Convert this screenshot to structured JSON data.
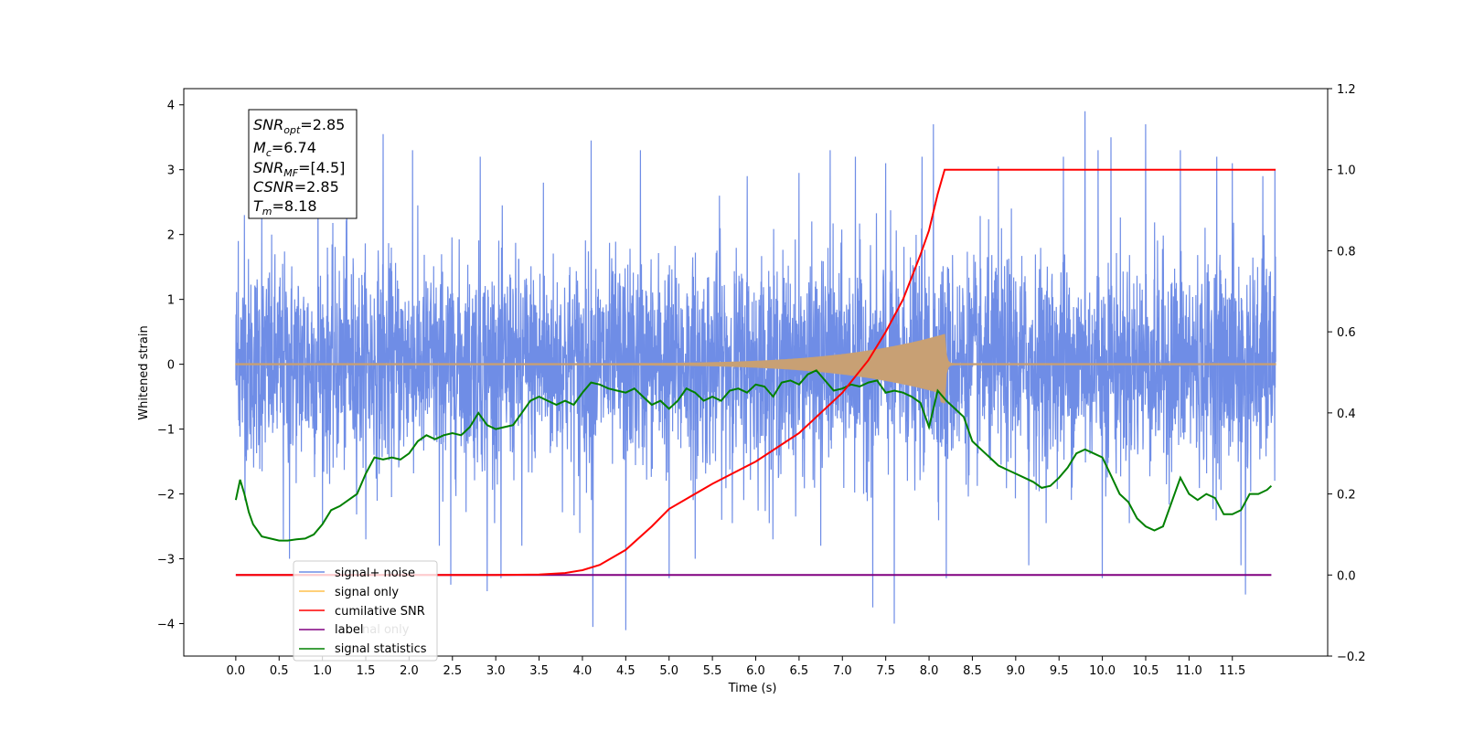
{
  "chart_data": {
    "type": "line",
    "xlabel": "Time (s)",
    "ylabel": "Whitened strain",
    "xlim": [
      -0.6,
      12.6
    ],
    "ylim": [
      -4.5,
      4.25
    ],
    "y2lim": [
      -0.2,
      1.2
    ],
    "x_ticks": [
      "0.0",
      "0.5",
      "1.0",
      "1.5",
      "2.0",
      "2.5",
      "3.0",
      "3.5",
      "4.0",
      "4.5",
      "5.0",
      "5.5",
      "6.0",
      "6.5",
      "7.0",
      "7.5",
      "8.0",
      "8.5",
      "9.0",
      "9.5",
      "10.0",
      "10.5",
      "11.0",
      "11.5"
    ],
    "y_ticks": [
      "4",
      "3",
      "2",
      "1",
      "0",
      "−1",
      "−2",
      "−3",
      "−4"
    ],
    "y2_ticks": [
      "1.2",
      "1.0",
      "0.8",
      "0.6",
      "0.4",
      "0.2",
      "0.0",
      "−0.2"
    ],
    "colors": {
      "signal_noise": "#6f8de6",
      "signal_only": "#c8a074",
      "cumulative_snr": "#ff0000",
      "label": "#800080",
      "signal_statistics": "#008000"
    },
    "stats_box": {
      "snr_opt": "=2.85",
      "mc": "=6.74",
      "snr_mf": "=[4.5]",
      "csnr": "=2.85",
      "tm": "=8.18"
    },
    "legend": {
      "placement": "lower-left",
      "entries": [
        "signal+ noise",
        "signal only",
        "cumilative SNR",
        "label",
        "signal statistics"
      ],
      "hidden_entry": "signal only",
      "hidden_entry_partial": "nal only"
    },
    "series": [
      {
        "name": "signal+ noise",
        "kind": "noise",
        "x_range": [
          0.0,
          12.0
        ],
        "std": 1.0,
        "peaks": [
          [
            0.03,
            1.9
          ],
          [
            0.1,
            2.3
          ],
          [
            0.3,
            2.5
          ],
          [
            0.55,
            -2.7
          ],
          [
            0.62,
            -3.0
          ],
          [
            0.95,
            2.9
          ],
          [
            1.28,
            3.0
          ],
          [
            1.5,
            -2.7
          ],
          [
            1.7,
            3.55
          ],
          [
            2.04,
            3.3
          ],
          [
            2.35,
            -2.8
          ],
          [
            2.48,
            -3.4
          ],
          [
            2.82,
            3.2
          ],
          [
            2.9,
            -3.5
          ],
          [
            3.06,
            -3.3
          ],
          [
            3.3,
            -2.8
          ],
          [
            3.55,
            2.8
          ],
          [
            3.97,
            -2.6
          ],
          [
            4.1,
            3.45
          ],
          [
            4.12,
            -4.05
          ],
          [
            4.5,
            -4.1
          ],
          [
            4.67,
            3.3
          ],
          [
            5.0,
            -3.3
          ],
          [
            5.3,
            -3.0
          ],
          [
            5.58,
            2.6
          ],
          [
            5.9,
            2.9
          ],
          [
            6.2,
            -2.7
          ],
          [
            6.5,
            2.95
          ],
          [
            6.75,
            -2.8
          ],
          [
            6.86,
            3.3
          ],
          [
            7.15,
            3.2
          ],
          [
            7.35,
            -3.75
          ],
          [
            7.5,
            3.1
          ],
          [
            7.6,
            -4.0
          ],
          [
            7.92,
            3.2
          ],
          [
            8.05,
            3.7
          ],
          [
            8.2,
            -3.3
          ],
          [
            8.8,
            3.05
          ],
          [
            8.95,
            2.4
          ],
          [
            9.15,
            -3.1
          ],
          [
            9.55,
            3.2
          ],
          [
            9.8,
            3.9
          ],
          [
            9.95,
            3.3
          ],
          [
            10.0,
            -3.3
          ],
          [
            10.1,
            3.5
          ],
          [
            10.5,
            3.7
          ],
          [
            10.9,
            3.3
          ],
          [
            11.32,
            3.2
          ],
          [
            11.5,
            3.1
          ],
          [
            11.6,
            -3.1
          ],
          [
            11.65,
            -3.55
          ],
          [
            11.85,
            2.9
          ],
          [
            11.99,
            3.0
          ]
        ]
      },
      {
        "name": "signal only",
        "kind": "chirp",
        "x_range": [
          0.0,
          12.0
        ],
        "merger_time": 8.18,
        "peak_amplitude": 0.45
      },
      {
        "name": "cumilative SNR",
        "axis": "right",
        "x": [
          0.0,
          3.0,
          3.5,
          3.8,
          4.0,
          4.2,
          4.5,
          4.8,
          5.0,
          5.5,
          6.0,
          6.5,
          7.0,
          7.3,
          7.5,
          7.7,
          7.9,
          8.0,
          8.1,
          8.18,
          8.5,
          9.0,
          10.0,
          11.0,
          12.0
        ],
        "y": [
          0.0,
          0.0,
          0.001,
          0.005,
          0.012,
          0.025,
          0.062,
          0.12,
          0.163,
          0.225,
          0.28,
          0.35,
          0.45,
          0.53,
          0.6,
          0.68,
          0.79,
          0.85,
          0.94,
          1.0,
          1.0,
          1.0,
          1.0,
          1.0,
          1.0
        ]
      },
      {
        "name": "label",
        "axis": "right",
        "x": [
          0.0,
          11.95
        ],
        "y": [
          0.0,
          0.0
        ]
      },
      {
        "name": "signal statistics",
        "axis": "right",
        "x": [
          0.0,
          0.05,
          0.1,
          0.15,
          0.2,
          0.3,
          0.4,
          0.5,
          0.6,
          0.7,
          0.8,
          0.9,
          1.0,
          1.1,
          1.2,
          1.3,
          1.4,
          1.5,
          1.6,
          1.7,
          1.8,
          1.9,
          2.0,
          2.1,
          2.2,
          2.3,
          2.4,
          2.5,
          2.6,
          2.7,
          2.8,
          2.9,
          3.0,
          3.1,
          3.2,
          3.3,
          3.4,
          3.5,
          3.6,
          3.7,
          3.8,
          3.9,
          4.0,
          4.1,
          4.2,
          4.3,
          4.4,
          4.5,
          4.6,
          4.7,
          4.8,
          4.9,
          5.0,
          5.1,
          5.2,
          5.3,
          5.4,
          5.5,
          5.6,
          5.7,
          5.8,
          5.9,
          6.0,
          6.1,
          6.2,
          6.3,
          6.4,
          6.5,
          6.6,
          6.7,
          6.8,
          6.9,
          7.0,
          7.1,
          7.2,
          7.3,
          7.4,
          7.5,
          7.6,
          7.7,
          7.8,
          7.9,
          8.0,
          8.1,
          8.2,
          8.3,
          8.4,
          8.5,
          8.6,
          8.7,
          8.8,
          8.9,
          9.0,
          9.1,
          9.2,
          9.3,
          9.4,
          9.5,
          9.6,
          9.7,
          9.8,
          9.9,
          10.0,
          10.1,
          10.2,
          10.3,
          10.4,
          10.5,
          10.6,
          10.7,
          10.8,
          10.9,
          11.0,
          11.1,
          11.2,
          11.3,
          11.4,
          11.5,
          11.6,
          11.7,
          11.8,
          11.9,
          11.95
        ],
        "y": [
          0.185,
          0.235,
          0.2,
          0.155,
          0.125,
          0.095,
          0.09,
          0.085,
          0.085,
          0.088,
          0.09,
          0.1,
          0.125,
          0.16,
          0.17,
          0.185,
          0.2,
          0.25,
          0.29,
          0.285,
          0.29,
          0.285,
          0.3,
          0.33,
          0.345,
          0.335,
          0.345,
          0.35,
          0.345,
          0.365,
          0.4,
          0.37,
          0.36,
          0.365,
          0.37,
          0.4,
          0.43,
          0.44,
          0.43,
          0.42,
          0.43,
          0.42,
          0.45,
          0.475,
          0.47,
          0.46,
          0.455,
          0.45,
          0.46,
          0.44,
          0.42,
          0.43,
          0.41,
          0.43,
          0.46,
          0.45,
          0.43,
          0.44,
          0.43,
          0.455,
          0.46,
          0.45,
          0.47,
          0.465,
          0.44,
          0.475,
          0.48,
          0.47,
          0.495,
          0.505,
          0.48,
          0.455,
          0.46,
          0.47,
          0.465,
          0.475,
          0.48,
          0.45,
          0.455,
          0.45,
          0.44,
          0.425,
          0.365,
          0.455,
          0.43,
          0.41,
          0.39,
          0.33,
          0.31,
          0.29,
          0.27,
          0.26,
          0.25,
          0.24,
          0.23,
          0.215,
          0.22,
          0.24,
          0.265,
          0.3,
          0.31,
          0.3,
          0.29,
          0.245,
          0.2,
          0.18,
          0.14,
          0.12,
          0.11,
          0.12,
          0.18,
          0.24,
          0.2,
          0.185,
          0.2,
          0.19,
          0.15,
          0.15,
          0.16,
          0.2,
          0.2,
          0.21,
          0.22
        ]
      }
    ]
  }
}
